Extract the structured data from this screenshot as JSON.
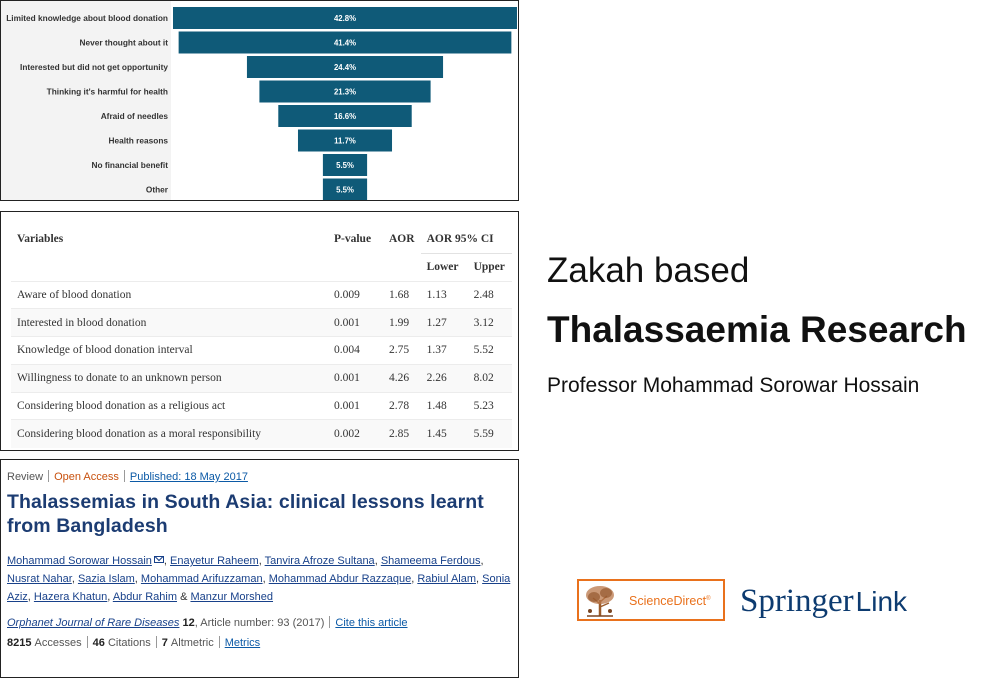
{
  "chart_data": {
    "type": "bar",
    "orientation": "horizontal-funnel",
    "categories": [
      "Limited knowledge about blood donation",
      "Never thought about it",
      "Interested but did not get opportunity",
      "Thinking it's harmful for health",
      "Afraid of needles",
      "Health reasons",
      "No financial benefit",
      "Other"
    ],
    "values": [
      42.8,
      41.4,
      24.4,
      21.3,
      16.6,
      11.7,
      5.5,
      5.5
    ],
    "value_labels": [
      "42.8%",
      "41.4%",
      "24.4%",
      "21.3%",
      "16.6%",
      "11.7%",
      "5.5%",
      "5.5%"
    ],
    "bar_color": "#0f5a78"
  },
  "table": {
    "headers": {
      "variables": "Variables",
      "pvalue": "P-value",
      "aor": "AOR",
      "ci": "AOR 95% CI",
      "lower": "Lower",
      "upper": "Upper"
    },
    "rows": [
      {
        "variable": "Aware of blood donation",
        "p": "0.009",
        "aor": "1.68",
        "lower": "1.13",
        "upper": "2.48"
      },
      {
        "variable": "Interested in blood donation",
        "p": "0.001",
        "aor": "1.99",
        "lower": "1.27",
        "upper": "3.12"
      },
      {
        "variable": "Knowledge of blood donation interval",
        "p": "0.004",
        "aor": "2.75",
        "lower": "1.37",
        "upper": "5.52"
      },
      {
        "variable": "Willingness to donate to an unknown person",
        "p": "0.001",
        "aor": "4.26",
        "lower": "2.26",
        "upper": "8.02"
      },
      {
        "variable": "Considering blood donation as a religious act",
        "p": "0.001",
        "aor": "2.78",
        "lower": "1.48",
        "upper": "5.23"
      },
      {
        "variable": "Considering blood donation as a moral responsibility",
        "p": "0.002",
        "aor": "2.85",
        "lower": "1.45",
        "upper": "5.59"
      }
    ]
  },
  "article": {
    "type": "Review",
    "access": "Open Access",
    "published": "Published: 18 May 2017",
    "title": "Thalassemias in South Asia: clinical lessons learnt from Bangladesh",
    "authors": [
      "Mohammad Sorowar Hossain",
      "Enayetur Raheem",
      "Tanvira Afroze Sultana",
      "Shameema Ferdous",
      "Nusrat Nahar",
      "Sazia Islam",
      "Mohammad Arifuzzaman",
      "Mohammad Abdur Razzaque",
      "Rabiul Alam",
      "Sonia Aziz",
      "Hazera Khatun",
      "Abdur Rahim",
      "Manzur Morshed"
    ],
    "journal": "Orphanet Journal of Rare Diseases",
    "volume": "12",
    "article_number": ", Article number: 93 (2017)",
    "cite": "Cite this article",
    "accesses_count": "8215",
    "accesses_label": "Accesses",
    "citations_count": "46",
    "citations_label": "Citations",
    "altmetric_count": "7",
    "altmetric_label": "Altmetric",
    "metrics_link": "Metrics"
  },
  "right": {
    "subtitle": "Zakah based",
    "title": "Thalassaemia Research",
    "professor": "Professor Mohammad Sorowar Hossain"
  },
  "logos": {
    "sciencedirect": "ScienceDirect",
    "sciencedirect_mark": "®",
    "springer": "Springer",
    "link": "Link",
    "sciencedirect_color": "#e9711c",
    "springer_color": "#0d3b70",
    "sciencedirect_icon": "elsevier-tree-icon"
  }
}
